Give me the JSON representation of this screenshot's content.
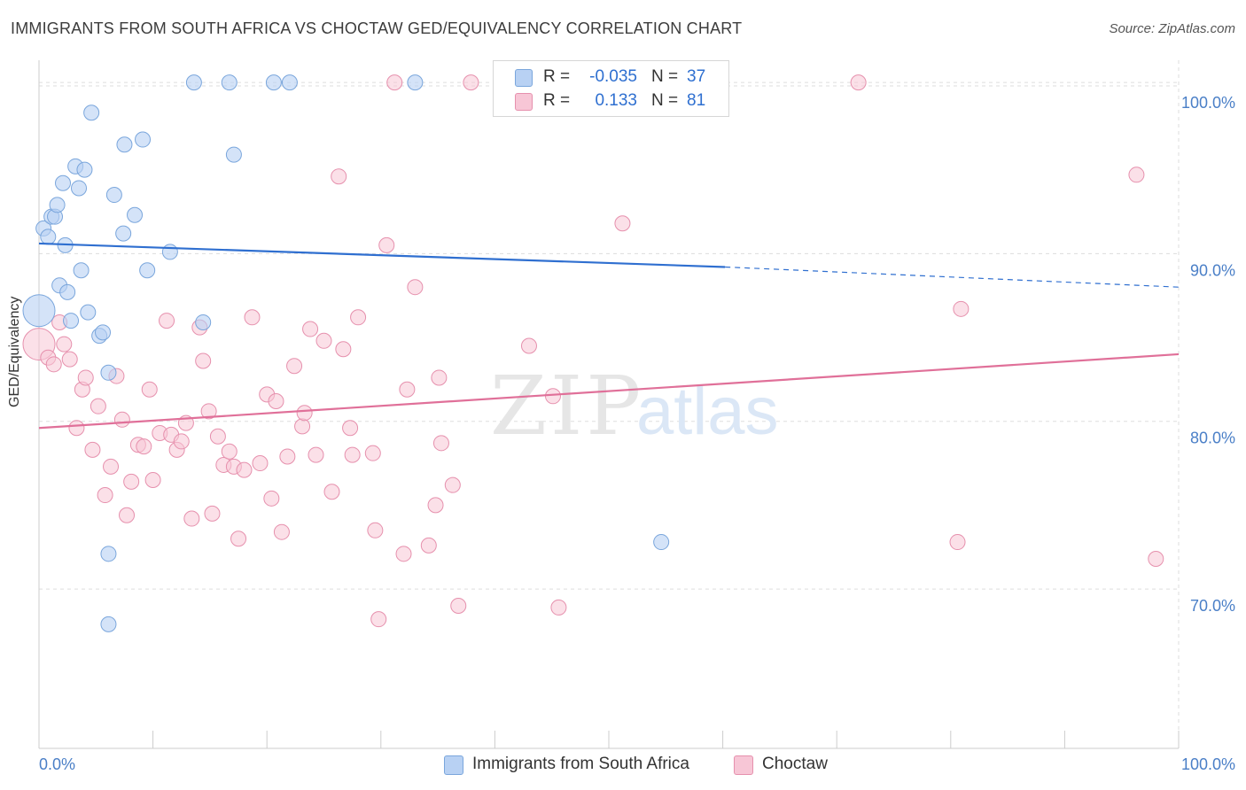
{
  "title": "IMMIGRANTS FROM SOUTH AFRICA VS CHOCTAW GED/EQUIVALENCY CORRELATION CHART",
  "source": "Source: ZipAtlas.com",
  "watermark": {
    "zip": "ZIP",
    "atlas": "atlas"
  },
  "colors": {
    "blue_fill": "#b8d1f3",
    "blue_stroke": "#7aa6dc",
    "blue_line": "#2f6fd0",
    "pink_fill": "#f7c6d6",
    "pink_stroke": "#e690ad",
    "pink_line": "#e07099",
    "tick_text": "#4a7fc7",
    "grid": "#dddddd"
  },
  "legend": {
    "r_label": "R =",
    "n_label": "N =",
    "series": [
      {
        "r": "-0.035",
        "n": "37"
      },
      {
        "r": "0.133",
        "n": "81"
      }
    ]
  },
  "chart_data": {
    "type": "scatter",
    "title": "IMMIGRANTS FROM SOUTH AFRICA VS CHOCTAW GED/EQUIVALENCY CORRELATION CHART",
    "xlabel": "",
    "ylabel": "GED/Equivalency",
    "xlim": [
      0,
      100
    ],
    "ylim": [
      60.5,
      101
    ],
    "x_tick_labels": [
      "0.0%",
      "100.0%"
    ],
    "y_ticks": [
      70,
      80,
      90,
      100
    ],
    "y_tick_labels": [
      "70.0%",
      "80.0%",
      "90.0%",
      "100.0%"
    ],
    "grid": true,
    "legend_position": "top-center",
    "series": [
      {
        "name": "Immigrants from South Africa",
        "color": "#b8d1f3",
        "points": [
          [
            0,
            86.6
          ],
          [
            0.4,
            91.5
          ],
          [
            0.8,
            91.0
          ],
          [
            1.1,
            92.2
          ],
          [
            1.4,
            92.2
          ],
          [
            1.6,
            92.9
          ],
          [
            1.8,
            88.1
          ],
          [
            2.1,
            94.2
          ],
          [
            2.3,
            90.5
          ],
          [
            2.5,
            87.7
          ],
          [
            2.8,
            86.0
          ],
          [
            3.2,
            95.2
          ],
          [
            3.5,
            93.9
          ],
          [
            3.7,
            89.0
          ],
          [
            4.0,
            95.0
          ],
          [
            4.3,
            86.5
          ],
          [
            4.6,
            98.4
          ],
          [
            5.3,
            85.1
          ],
          [
            5.6,
            85.3
          ],
          [
            6.1,
            82.9
          ],
          [
            6.1,
            72.1
          ],
          [
            6.1,
            67.9
          ],
          [
            6.6,
            93.5
          ],
          [
            7.4,
            91.2
          ],
          [
            7.5,
            96.5
          ],
          [
            8.4,
            92.3
          ],
          [
            9.1,
            96.8
          ],
          [
            9.5,
            89.0
          ],
          [
            11.5,
            90.1
          ],
          [
            13.6,
            100.2
          ],
          [
            14.4,
            85.9
          ],
          [
            16.7,
            100.2
          ],
          [
            17.1,
            95.9
          ],
          [
            20.6,
            100.2
          ],
          [
            22.0,
            100.2
          ],
          [
            33.0,
            100.2
          ],
          [
            54.6,
            72.8
          ]
        ],
        "trend": {
          "x": [
            0,
            60.2
          ],
          "y": [
            90.6,
            89.2
          ],
          "dashed_extension": {
            "x": [
              60.2,
              100
            ],
            "y": [
              89.2,
              88.0
            ]
          }
        }
      },
      {
        "name": "Choctaw",
        "color": "#f7c6d6",
        "points": [
          [
            0,
            84.6
          ],
          [
            0.8,
            83.8
          ],
          [
            1.3,
            83.4
          ],
          [
            1.8,
            85.9
          ],
          [
            2.2,
            84.6
          ],
          [
            2.7,
            83.7
          ],
          [
            3.3,
            79.6
          ],
          [
            3.8,
            81.9
          ],
          [
            4.1,
            82.6
          ],
          [
            4.7,
            78.3
          ],
          [
            5.2,
            80.9
          ],
          [
            5.8,
            75.6
          ],
          [
            6.3,
            77.3
          ],
          [
            6.8,
            82.7
          ],
          [
            7.3,
            80.1
          ],
          [
            7.7,
            74.4
          ],
          [
            8.1,
            76.4
          ],
          [
            8.7,
            78.6
          ],
          [
            9.2,
            78.5
          ],
          [
            9.7,
            81.9
          ],
          [
            10.0,
            76.5
          ],
          [
            10.6,
            79.3
          ],
          [
            11.2,
            86.0
          ],
          [
            11.6,
            79.2
          ],
          [
            12.1,
            78.3
          ],
          [
            12.5,
            78.8
          ],
          [
            12.9,
            79.9
          ],
          [
            13.4,
            74.2
          ],
          [
            14.1,
            85.6
          ],
          [
            14.4,
            83.6
          ],
          [
            14.9,
            80.6
          ],
          [
            15.2,
            74.5
          ],
          [
            15.7,
            79.1
          ],
          [
            16.2,
            77.4
          ],
          [
            16.7,
            78.2
          ],
          [
            17.1,
            77.3
          ],
          [
            17.5,
            73.0
          ],
          [
            18.0,
            77.1
          ],
          [
            18.7,
            86.2
          ],
          [
            19.4,
            77.5
          ],
          [
            20.0,
            81.6
          ],
          [
            20.4,
            75.4
          ],
          [
            20.8,
            81.2
          ],
          [
            21.3,
            73.4
          ],
          [
            21.8,
            77.9
          ],
          [
            22.4,
            83.3
          ],
          [
            23.1,
            79.7
          ],
          [
            23.3,
            80.5
          ],
          [
            23.8,
            85.5
          ],
          [
            24.3,
            78.0
          ],
          [
            25.0,
            84.8
          ],
          [
            25.7,
            75.8
          ],
          [
            26.3,
            94.6
          ],
          [
            26.7,
            84.3
          ],
          [
            27.3,
            79.6
          ],
          [
            27.5,
            78.0
          ],
          [
            28.0,
            86.2
          ],
          [
            29.3,
            78.1
          ],
          [
            29.5,
            73.5
          ],
          [
            29.8,
            68.2
          ],
          [
            30.5,
            90.5
          ],
          [
            32.0,
            72.1
          ],
          [
            32.3,
            81.9
          ],
          [
            33.0,
            88.0
          ],
          [
            34.2,
            72.6
          ],
          [
            34.8,
            75.0
          ],
          [
            35.1,
            82.6
          ],
          [
            35.3,
            78.7
          ],
          [
            36.3,
            76.2
          ],
          [
            36.8,
            69.0
          ],
          [
            37.9,
            100.2
          ],
          [
            43.0,
            84.5
          ],
          [
            45.1,
            81.5
          ],
          [
            45.6,
            68.9
          ],
          [
            51.2,
            91.8
          ],
          [
            71.9,
            100.2
          ],
          [
            80.6,
            72.8
          ],
          [
            80.9,
            86.7
          ],
          [
            96.3,
            94.7
          ],
          [
            98.0,
            71.8
          ],
          [
            31.2,
            100.2
          ]
        ],
        "trend": {
          "x": [
            0,
            100
          ],
          "y": [
            79.6,
            84.0
          ]
        }
      }
    ]
  },
  "bottom_legend": {
    "items": [
      "Immigrants from South Africa",
      "Choctaw"
    ]
  }
}
